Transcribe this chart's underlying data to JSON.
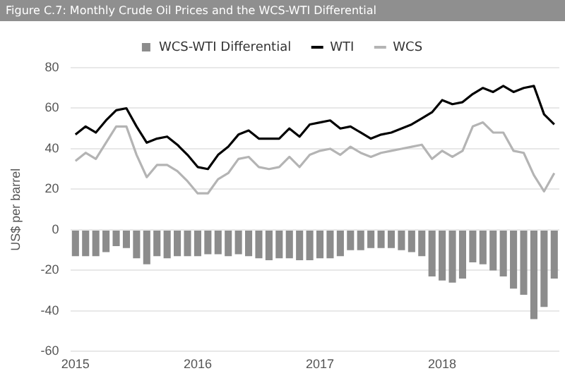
{
  "chart_data": {
    "type": "bar",
    "title": "Figure C.7: Monthly Crude Oil Prices and the WCS-WTI Differential",
    "ylabel": "US$ per barrel",
    "categories": [
      "2015",
      null,
      null,
      null,
      null,
      null,
      null,
      null,
      null,
      null,
      null,
      null,
      "2016",
      null,
      null,
      null,
      null,
      null,
      null,
      null,
      null,
      null,
      null,
      null,
      "2017",
      null,
      null,
      null,
      null,
      null,
      null,
      null,
      null,
      null,
      null,
      null,
      "2018",
      null,
      null,
      null,
      null,
      null,
      null,
      null,
      null,
      null,
      null,
      null
    ],
    "series": [
      {
        "name": "WCS-WTI Differential",
        "color": "#8c8c8c",
        "values": [
          -13,
          -13,
          -13,
          -11,
          -8,
          -9,
          -14,
          -17,
          -13,
          -14,
          -13,
          -13,
          -13,
          -12,
          -12,
          -13,
          -12,
          -13,
          -14,
          -15,
          -14,
          -14,
          -15,
          -15,
          -14,
          -14,
          -13,
          -10,
          -10,
          -9,
          -9,
          -9,
          -10,
          -11,
          -13,
          -23,
          -25,
          -26,
          -24,
          -16,
          -17,
          -20,
          -23,
          -29,
          -32,
          -44,
          -38,
          -24
        ]
      },
      {
        "name": "WTI",
        "type": "line",
        "color": "#000000",
        "values": [
          47,
          51,
          48,
          54,
          59,
          60,
          51,
          43,
          45,
          46,
          42,
          37,
          31,
          30,
          37,
          41,
          47,
          49,
          45,
          45,
          45,
          50,
          46,
          52,
          53,
          54,
          50,
          51,
          48,
          45,
          47,
          48,
          50,
          52,
          55,
          58,
          64,
          62,
          63,
          67,
          70,
          68,
          71,
          68,
          70,
          71,
          57,
          52
        ]
      },
      {
        "name": "WCS",
        "type": "line",
        "color": "#b4b4b4",
        "values": [
          34,
          38,
          35,
          43,
          51,
          51,
          37,
          26,
          32,
          32,
          29,
          24,
          18,
          18,
          25,
          28,
          35,
          36,
          31,
          30,
          31,
          36,
          31,
          37,
          39,
          40,
          37,
          41,
          38,
          36,
          38,
          39,
          40,
          41,
          42,
          35,
          39,
          36,
          39,
          51,
          53,
          48,
          48,
          39,
          38,
          27,
          19,
          28
        ]
      }
    ],
    "ylim": [
      -60,
      80
    ],
    "yticks": [
      -60,
      -40,
      -20,
      0,
      20,
      40,
      60,
      80
    ],
    "grid": "y",
    "legend": "top",
    "marker": "none"
  }
}
